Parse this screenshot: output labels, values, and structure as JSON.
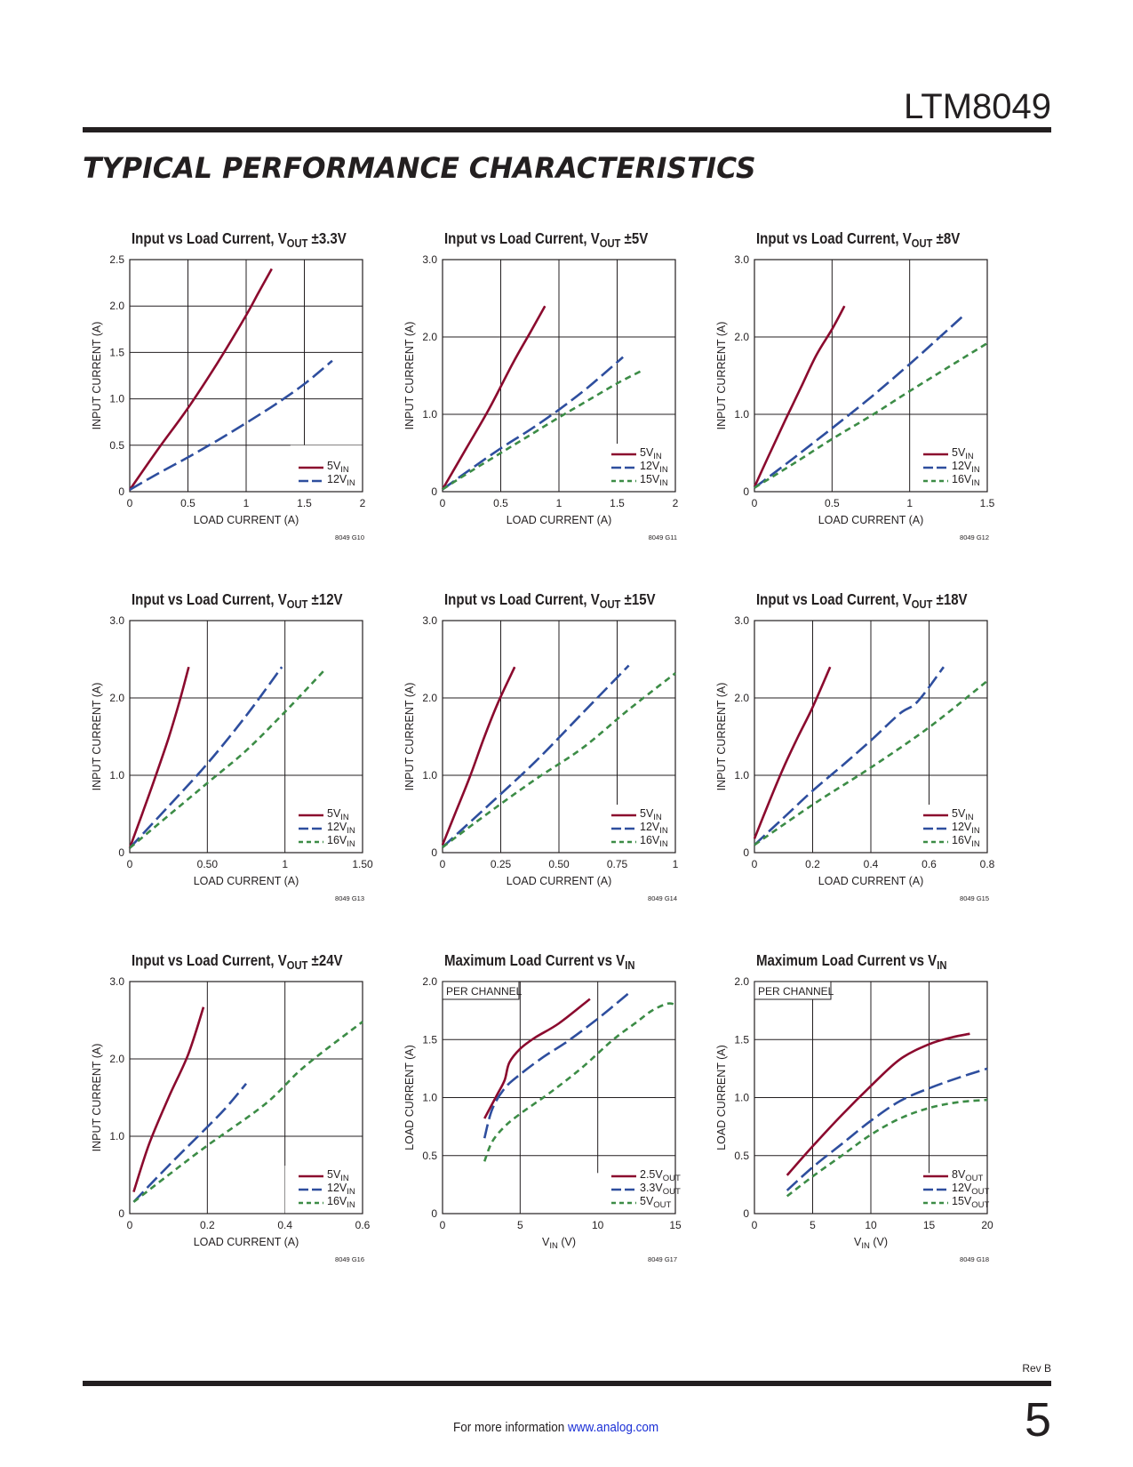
{
  "header": {
    "part_number": "LTM8049",
    "section_title": "TYPICAL PERFORMANCE CHARACTERISTICS"
  },
  "footer": {
    "info_text": "For more information ",
    "link_text": "www.analog.com",
    "revision": "Rev B",
    "page_number": "5"
  },
  "colors": {
    "red": "#8b0a2e",
    "blue": "#2e4e9e",
    "green": "#3c8c46",
    "ink": "#231f20"
  },
  "chart_data": [
    {
      "id": "g10",
      "type": "line",
      "title": {
        "main": "Input vs Load Current, V",
        "sub": "OUT",
        "suffix": " ±3.3V"
      },
      "xlabel": "LOAD CURRENT (A)",
      "ylabel": "INPUT CURRENT (A)",
      "xlim": [
        0,
        2
      ],
      "ylim": [
        0,
        2.5
      ],
      "xticks": [
        0,
        0.5,
        1,
        1.5,
        2
      ],
      "xtick_labels": [
        "0",
        "0.5",
        "1",
        "1.5",
        "2"
      ],
      "yticks": [
        0,
        0.5,
        1,
        1.5,
        2,
        2.5
      ],
      "ytick_labels": [
        "0",
        "0.5",
        "1.0",
        "1.5",
        "2.0",
        "2.5"
      ],
      "code": "8049 G10",
      "note": "",
      "legend_clear": [
        1.38,
        0.5
      ],
      "series": [
        {
          "name": "5V",
          "sub": "IN",
          "color": "red",
          "style": "solid",
          "x": [
            0,
            0.25,
            0.5,
            0.75,
            1.0,
            1.1,
            1.22
          ],
          "y": [
            0.02,
            0.47,
            0.9,
            1.38,
            1.9,
            2.13,
            2.4
          ]
        },
        {
          "name": "12V",
          "sub": "IN",
          "color": "blue",
          "style": "dash",
          "x": [
            0,
            0.25,
            0.5,
            0.75,
            1.0,
            1.25,
            1.5,
            1.74
          ],
          "y": [
            0.02,
            0.2,
            0.37,
            0.55,
            0.74,
            0.94,
            1.16,
            1.41
          ]
        }
      ]
    },
    {
      "id": "g11",
      "type": "line",
      "title": {
        "main": "Input vs Load Current, V",
        "sub": "OUT",
        "suffix": " ±5V"
      },
      "xlabel": "LOAD CURRENT (A)",
      "ylabel": "INPUT CURRENT (A)",
      "xlim": [
        0,
        2
      ],
      "ylim": [
        0,
        3
      ],
      "xticks": [
        0,
        0.5,
        1,
        1.5,
        2
      ],
      "xtick_labels": [
        "0",
        "0.5",
        "1",
        "1.5",
        "2"
      ],
      "yticks": [
        0,
        1,
        2,
        3
      ],
      "ytick_labels": [
        "0",
        "1.0",
        "2.0",
        "3.0"
      ],
      "code": "8049 G11",
      "note": "",
      "legend_clear": [
        1.38,
        0.62
      ],
      "series": [
        {
          "name": "5V",
          "sub": "IN",
          "color": "red",
          "style": "solid",
          "x": [
            0,
            0.2,
            0.4,
            0.6,
            0.75,
            0.88
          ],
          "y": [
            0.03,
            0.55,
            1.07,
            1.65,
            2.05,
            2.4
          ]
        },
        {
          "name": "12V",
          "sub": "IN",
          "color": "blue",
          "style": "dash",
          "x": [
            0,
            0.25,
            0.5,
            0.75,
            1.0,
            1.25,
            1.55
          ],
          "y": [
            0.03,
            0.3,
            0.56,
            0.8,
            1.06,
            1.35,
            1.74
          ]
        },
        {
          "name": "15V",
          "sub": "IN",
          "color": "green",
          "style": "dash_small",
          "x": [
            0,
            0.25,
            0.5,
            0.75,
            1.0,
            1.25,
            1.5,
            1.72
          ],
          "y": [
            0.03,
            0.27,
            0.5,
            0.73,
            0.96,
            1.18,
            1.4,
            1.57
          ]
        }
      ]
    },
    {
      "id": "g12",
      "type": "line",
      "title": {
        "main": "Input vs Load Current, V",
        "sub": "OUT",
        "suffix": " ±8V"
      },
      "xlabel": "LOAD CURRENT (A)",
      "ylabel": "INPUT CURRENT (A)",
      "xlim": [
        0,
        1.5
      ],
      "ylim": [
        0,
        3
      ],
      "xticks": [
        0,
        0.5,
        1,
        1.5
      ],
      "xtick_labels": [
        "0",
        "0.5",
        "1",
        "1.5"
      ],
      "yticks": [
        0,
        1,
        2,
        3
      ],
      "ytick_labels": [
        "0",
        "1.0",
        "2.0",
        "3.0"
      ],
      "code": "8049 G12",
      "note": "",
      "legend_clear": [
        1.02,
        0.62
      ],
      "series": [
        {
          "name": "5V",
          "sub": "IN",
          "color": "red",
          "style": "solid",
          "x": [
            0,
            0.1,
            0.2,
            0.3,
            0.4,
            0.5,
            0.58
          ],
          "y": [
            0.06,
            0.5,
            0.93,
            1.35,
            1.77,
            2.1,
            2.4
          ]
        },
        {
          "name": "12V",
          "sub": "IN",
          "color": "blue",
          "style": "dash",
          "x": [
            0,
            0.25,
            0.5,
            0.75,
            1.0,
            1.25,
            1.36
          ],
          "y": [
            0.05,
            0.43,
            0.82,
            1.22,
            1.65,
            2.1,
            2.3
          ]
        },
        {
          "name": "16V",
          "sub": "IN",
          "color": "green",
          "style": "dash_small",
          "x": [
            0,
            0.25,
            0.5,
            0.75,
            1.0,
            1.25,
            1.5
          ],
          "y": [
            0.05,
            0.36,
            0.68,
            0.98,
            1.3,
            1.61,
            1.92
          ]
        }
      ]
    },
    {
      "id": "g13",
      "type": "line",
      "title": {
        "main": "Input vs Load Current, V",
        "sub": "OUT",
        "suffix": " ±12V"
      },
      "xlabel": "LOAD CURRENT (A)",
      "ylabel": "INPUT CURRENT (A)",
      "xlim": [
        0,
        1.5
      ],
      "ylim": [
        0,
        3
      ],
      "xticks": [
        0,
        0.5,
        1,
        1.5
      ],
      "xtick_labels": [
        "0",
        "0.50",
        "1",
        "1.50"
      ],
      "yticks": [
        0,
        1,
        2,
        3
      ],
      "ytick_labels": [
        "0",
        "1.0",
        "2.0",
        "3.0"
      ],
      "code": "8049 G13",
      "note": "",
      "legend_clear": [
        1.02,
        0.62
      ],
      "series": [
        {
          "name": "5V",
          "sub": "IN",
          "color": "red",
          "style": "solid",
          "x": [
            0,
            0.08,
            0.16,
            0.25,
            0.32,
            0.38
          ],
          "y": [
            0.06,
            0.5,
            0.95,
            1.48,
            1.95,
            2.4
          ]
        },
        {
          "name": "12V",
          "sub": "IN",
          "color": "blue",
          "style": "dash",
          "x": [
            0,
            0.25,
            0.5,
            0.75,
            0.98
          ],
          "y": [
            0.06,
            0.6,
            1.15,
            1.77,
            2.4
          ]
        },
        {
          "name": "16V",
          "sub": "IN",
          "color": "green",
          "style": "dash_small",
          "x": [
            0,
            0.25,
            0.5,
            0.75,
            1.0,
            1.25
          ],
          "y": [
            0.06,
            0.48,
            0.9,
            1.32,
            1.82,
            2.35
          ]
        }
      ]
    },
    {
      "id": "g14",
      "type": "line",
      "title": {
        "main": "Input vs Load Current, V",
        "sub": "OUT",
        "suffix": " ±15V"
      },
      "xlabel": "LOAD CURRENT (A)",
      "ylabel": "INPUT CURRENT (A)",
      "xlim": [
        0,
        1
      ],
      "ylim": [
        0,
        3
      ],
      "xticks": [
        0,
        0.25,
        0.5,
        0.75,
        1
      ],
      "xtick_labels": [
        "0",
        "0.25",
        "0.50",
        "0.75",
        "1"
      ],
      "yticks": [
        0,
        1,
        2,
        3
      ],
      "ytick_labels": [
        "0",
        "1.0",
        "2.0",
        "3.0"
      ],
      "code": "8049 G14",
      "note": "",
      "legend_clear": [
        0.68,
        0.62
      ],
      "series": [
        {
          "name": "5V",
          "sub": "IN",
          "color": "red",
          "style": "solid",
          "x": [
            0,
            0.06,
            0.12,
            0.18,
            0.24,
            0.31
          ],
          "y": [
            0.1,
            0.55,
            1.0,
            1.5,
            1.95,
            2.4
          ]
        },
        {
          "name": "12V",
          "sub": "IN",
          "color": "blue",
          "style": "dash",
          "x": [
            0,
            0.2,
            0.4,
            0.6,
            0.8
          ],
          "y": [
            0.07,
            0.62,
            1.18,
            1.8,
            2.42
          ]
        },
        {
          "name": "16V",
          "sub": "IN",
          "color": "green",
          "style": "dash_small",
          "x": [
            0,
            0.2,
            0.4,
            0.6,
            0.8,
            1.0
          ],
          "y": [
            0.07,
            0.52,
            0.95,
            1.35,
            1.85,
            2.32
          ]
        }
      ]
    },
    {
      "id": "g15",
      "type": "line",
      "title": {
        "main": "Input vs Load Current, V",
        "sub": "OUT",
        "suffix": " ±18V"
      },
      "xlabel": "LOAD CURRENT (A)",
      "ylabel": "INPUT CURRENT (A)",
      "xlim": [
        0,
        0.8
      ],
      "ylim": [
        0,
        3
      ],
      "xticks": [
        0,
        0.2,
        0.4,
        0.6,
        0.8
      ],
      "xtick_labels": [
        "0",
        "0.2",
        "0.4",
        "0.6",
        "0.8"
      ],
      "yticks": [
        0,
        1,
        2,
        3
      ],
      "ytick_labels": [
        "0",
        "1.0",
        "2.0",
        "3.0"
      ],
      "code": "8049 G15",
      "note": "",
      "legend_clear": [
        0.55,
        0.62
      ],
      "series": [
        {
          "name": "5V",
          "sub": "IN",
          "color": "red",
          "style": "solid",
          "x": [
            0,
            0.05,
            0.1,
            0.15,
            0.2,
            0.26
          ],
          "y": [
            0.18,
            0.65,
            1.1,
            1.5,
            1.88,
            2.4
          ]
        },
        {
          "name": "12V",
          "sub": "IN",
          "color": "blue",
          "style": "dash",
          "x": [
            0,
            0.1,
            0.2,
            0.3,
            0.4,
            0.5,
            0.56,
            0.65
          ],
          "y": [
            0.1,
            0.45,
            0.8,
            1.12,
            1.45,
            1.8,
            1.95,
            2.4
          ]
        },
        {
          "name": "16V",
          "sub": "IN",
          "color": "green",
          "style": "dash_small",
          "x": [
            0,
            0.2,
            0.4,
            0.6,
            0.8
          ],
          "y": [
            0.1,
            0.62,
            1.1,
            1.62,
            2.22
          ]
        }
      ]
    },
    {
      "id": "g16",
      "type": "line",
      "title": {
        "main": "Input vs Load Current, V",
        "sub": "OUT",
        "suffix": " ±24V"
      },
      "xlabel": "LOAD CURRENT (A)",
      "ylabel": "INPUT CURRENT (A)",
      "xlim": [
        0,
        0.6
      ],
      "ylim": [
        0,
        3
      ],
      "xticks": [
        0,
        0.2,
        0.4,
        0.6
      ],
      "xtick_labels": [
        "0",
        "0.2",
        "0.4",
        "0.6"
      ],
      "yticks": [
        0,
        1,
        2,
        3
      ],
      "ytick_labels": [
        "0",
        "1.0",
        "2.0",
        "3.0"
      ],
      "code": "8049 G16",
      "note": "",
      "legend_clear": [
        0.4,
        0.62
      ],
      "series": [
        {
          "name": "5V",
          "sub": "IN",
          "color": "red",
          "style": "solid",
          "x": [
            0.01,
            0.05,
            0.1,
            0.15,
            0.19
          ],
          "y": [
            0.28,
            0.9,
            1.5,
            2.05,
            2.67
          ]
        },
        {
          "name": "12V",
          "sub": "IN",
          "color": "blue",
          "style": "dash",
          "x": [
            0.01,
            0.1,
            0.2,
            0.25,
            0.3
          ],
          "y": [
            0.15,
            0.62,
            1.12,
            1.38,
            1.68
          ]
        },
        {
          "name": "16V",
          "sub": "IN",
          "color": "green",
          "style": "dash_small",
          "x": [
            0.01,
            0.1,
            0.2,
            0.35,
            0.45,
            0.6
          ],
          "y": [
            0.15,
            0.5,
            0.88,
            1.42,
            1.9,
            2.48
          ]
        }
      ]
    },
    {
      "id": "g17",
      "type": "line",
      "title": {
        "main": "Maximum Load Current vs V",
        "sub": "IN",
        "suffix": ""
      },
      "xlabel": "V",
      "xlabel_sub": "IN",
      "xlabel_suffix": " (V)",
      "ylabel": "LOAD CURRENT (A)",
      "xlim": [
        0,
        15
      ],
      "ylim": [
        0,
        2
      ],
      "xticks": [
        0,
        5,
        10,
        15
      ],
      "xtick_labels": [
        "0",
        "5",
        "10",
        "15"
      ],
      "yticks": [
        0,
        0.5,
        1,
        1.5,
        2
      ],
      "ytick_labels": [
        "0",
        "0.5",
        "1.0",
        "1.5",
        "2.0"
      ],
      "code": "8049 G17",
      "note": "PER CHANNEL",
      "legend_clear": [
        9.5,
        0.35
      ],
      "series": [
        {
          "name": "2.5V",
          "sub": "OUT",
          "color": "red",
          "style": "solid",
          "x": [
            2.7,
            3.5,
            4.0,
            4.3,
            5.0,
            6.0,
            7.5,
            9.5
          ],
          "y": [
            0.82,
            1.02,
            1.15,
            1.3,
            1.42,
            1.52,
            1.64,
            1.85
          ]
        },
        {
          "name": "3.3V",
          "sub": "OUT",
          "color": "blue",
          "style": "dash",
          "x": [
            2.7,
            3.2,
            4.0,
            5.0,
            6.5,
            8.0,
            10.0,
            12.0
          ],
          "y": [
            0.65,
            0.9,
            1.08,
            1.2,
            1.35,
            1.48,
            1.68,
            1.9
          ]
        },
        {
          "name": "5V",
          "sub": "OUT",
          "color": "green",
          "style": "dash_small",
          "x": [
            2.7,
            3.2,
            4.0,
            5.0,
            7.0,
            9.0,
            11.0,
            12.5,
            13.5,
            14.5,
            15.0
          ],
          "y": [
            0.45,
            0.62,
            0.75,
            0.86,
            1.05,
            1.26,
            1.5,
            1.65,
            1.75,
            1.81,
            1.8
          ]
        }
      ]
    },
    {
      "id": "g18",
      "type": "line",
      "title": {
        "main": "Maximum Load Current vs V",
        "sub": "IN",
        "suffix": ""
      },
      "xlabel": "V",
      "xlabel_sub": "IN",
      "xlabel_suffix": " (V)",
      "ylabel": "LOAD CURRENT (A)",
      "xlim": [
        0,
        20
      ],
      "ylim": [
        0,
        2
      ],
      "xticks": [
        0,
        5,
        10,
        15,
        20
      ],
      "xtick_labels": [
        "0",
        "5",
        "10",
        "15",
        "20"
      ],
      "yticks": [
        0,
        0.5,
        1,
        1.5,
        2
      ],
      "ytick_labels": [
        "0",
        "0.5",
        "1.0",
        "1.5",
        "2.0"
      ],
      "code": "8049 G18",
      "note": "PER CHANNEL",
      "legend_clear": [
        12.8,
        0.35
      ],
      "series": [
        {
          "name": "8V",
          "sub": "OUT",
          "color": "red",
          "style": "solid",
          "x": [
            2.8,
            5.0,
            7.5,
            10.0,
            12.5,
            15.0,
            17.0,
            18.5
          ],
          "y": [
            0.33,
            0.58,
            0.85,
            1.1,
            1.33,
            1.46,
            1.52,
            1.55
          ]
        },
        {
          "name": "12V",
          "sub": "OUT",
          "color": "blue",
          "style": "dash",
          "x": [
            2.8,
            5.0,
            7.5,
            10.0,
            12.5,
            15.0,
            17.5,
            20.0
          ],
          "y": [
            0.2,
            0.4,
            0.6,
            0.8,
            0.97,
            1.08,
            1.17,
            1.25
          ]
        },
        {
          "name": "15V",
          "sub": "OUT",
          "color": "green",
          "style": "dash_small",
          "x": [
            2.8,
            5.0,
            7.5,
            10.0,
            12.5,
            15.0,
            17.5,
            20.0
          ],
          "y": [
            0.15,
            0.32,
            0.5,
            0.68,
            0.82,
            0.91,
            0.96,
            0.98
          ]
        }
      ]
    }
  ]
}
